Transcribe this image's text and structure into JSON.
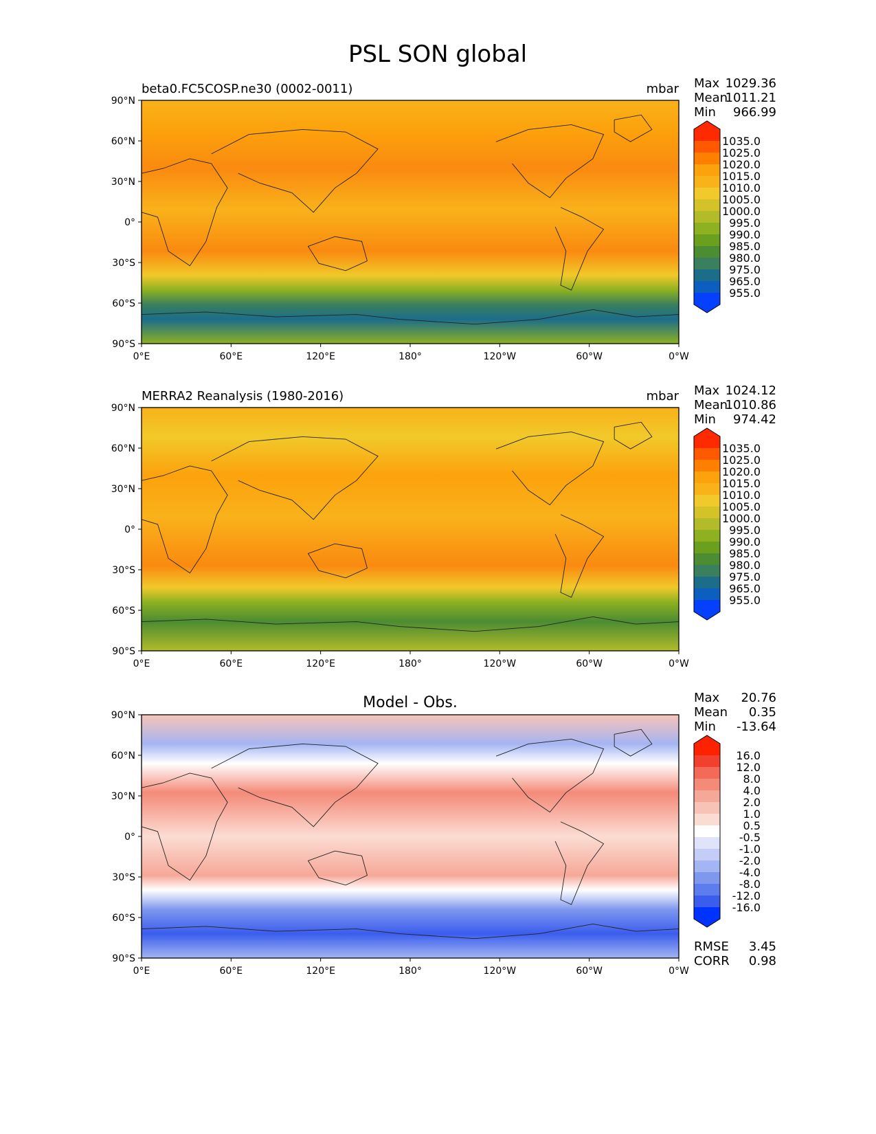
{
  "figure": {
    "title": "PSL SON global"
  },
  "x_ticks": [
    "0°E",
    "60°E",
    "120°E",
    "180°",
    "120°W",
    "60°W",
    "0°W"
  ],
  "y_ticks": [
    "90°N",
    "60°N",
    "30°N",
    "0°",
    "30°S",
    "60°S",
    "90°S"
  ],
  "panels": [
    {
      "id": "model",
      "title_left": "beta0.FC5COSP.ne30 (0002-0011)",
      "title_center": "",
      "units": "mbar",
      "stats": [
        {
          "label": "Max",
          "value": "1029.36"
        },
        {
          "label": "Mean",
          "value": "1011.21"
        },
        {
          "label": "Min",
          "value": "966.99"
        }
      ],
      "colorbar_ticks": [
        "1035.0",
        "1025.0",
        "1020.0",
        "1015.0",
        "1010.0",
        "1005.0",
        "1000.0",
        "995.0",
        "990.0",
        "985.0",
        "980.0",
        "975.0",
        "965.0",
        "955.0"
      ],
      "colorbar_colors": [
        "#ff2a00",
        "#ff5a00",
        "#ff7f00",
        "#fca20c",
        "#f9b21a",
        "#f1c92a",
        "#d4c328",
        "#b2bb28",
        "#8db121",
        "#6b9f1e",
        "#4c8c32",
        "#3a7f5e",
        "#1c6d8a",
        "#0c5fbf",
        "#0640ff"
      ]
    },
    {
      "id": "obs",
      "title_left": "MERRA2 Reanalysis (1980-2016)",
      "title_center": "",
      "units": "mbar",
      "stats": [
        {
          "label": "Max",
          "value": "1024.12"
        },
        {
          "label": "Mean",
          "value": "1010.86"
        },
        {
          "label": "Min",
          "value": "974.42"
        }
      ],
      "colorbar_ticks": [
        "1035.0",
        "1025.0",
        "1020.0",
        "1015.0",
        "1010.0",
        "1005.0",
        "1000.0",
        "995.0",
        "990.0",
        "985.0",
        "980.0",
        "975.0",
        "965.0",
        "955.0"
      ],
      "colorbar_colors": [
        "#ff2a00",
        "#ff5a00",
        "#ff7f00",
        "#fca20c",
        "#f9b21a",
        "#f1c92a",
        "#d4c328",
        "#b2bb28",
        "#8db121",
        "#6b9f1e",
        "#4c8c32",
        "#3a7f5e",
        "#1c6d8a",
        "#0c5fbf",
        "#0640ff"
      ]
    },
    {
      "id": "diff",
      "title_left": "",
      "title_center": "Model - Obs.",
      "units": "",
      "stats": [
        {
          "label": "Max",
          "value": "20.76"
        },
        {
          "label": "Mean",
          "value": "0.35"
        },
        {
          "label": "Min",
          "value": "-13.64"
        }
      ],
      "colorbar_ticks": [
        "16.0",
        "12.0",
        "8.0",
        "4.0",
        "2.0",
        "1.0",
        "0.5",
        "-0.5",
        "-1.0",
        "-2.0",
        "-4.0",
        "-8.0",
        "-12.0",
        "-16.0"
      ],
      "colorbar_colors": [
        "#ff2200",
        "#f2402f",
        "#f36a58",
        "#f48a78",
        "#f6a898",
        "#f8c3b7",
        "#fbdcd3",
        "#ffffff",
        "#dfe4fb",
        "#c3cdf7",
        "#a4b5f3",
        "#7f98ee",
        "#5d7ded",
        "#3a5dee",
        "#0033ff"
      ],
      "footer_stats": [
        {
          "label": "RMSE",
          "value": "3.45"
        },
        {
          "label": "CORR",
          "value": "0.98"
        }
      ]
    }
  ]
}
